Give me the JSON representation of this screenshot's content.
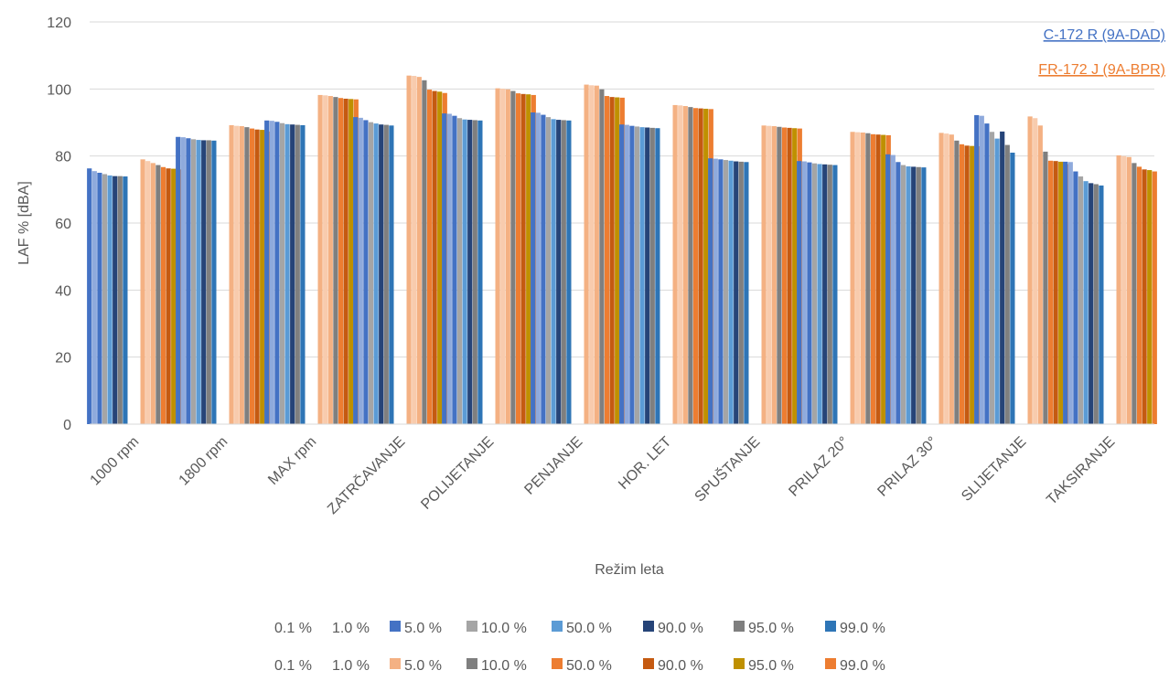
{
  "chart_data": {
    "type": "bar",
    "title": "",
    "xlabel": "Režim leta",
    "ylabel": "LAF % [dBA]",
    "ylim": [
      0,
      120
    ],
    "yticks": [
      0,
      20,
      40,
      60,
      80,
      100,
      120
    ],
    "grid": true,
    "categories": [
      "1000 rpm",
      "1800 rpm",
      "MAX rpm",
      "ZATRČAVANJE",
      "POLIJETANJE",
      "PENJANJE",
      "HOR. LET",
      "SPUŠTANJE",
      "PRILAZ 20°",
      "PRILAZ 30°",
      "SLIJETANJE",
      "TAKSIRANJE"
    ],
    "groups": [
      {
        "name": "C-172 R (9A-DAD)",
        "color": "#4472c4",
        "series": [
          {
            "name": "0.1 %",
            "color": "#4472c4",
            "values": [
              76.3,
              85.7,
              90.6,
              91.6,
              92.7,
              93.0,
              89.4,
              79.3,
              78.5,
              80.5,
              92.2,
              78.3
            ]
          },
          {
            "name": "1.0 %",
            "color": "#8faadc",
            "values": [
              75.5,
              85.6,
              90.5,
              91.4,
              92.6,
              92.9,
              89.3,
              79.2,
              78.4,
              80.3,
              92.0,
              78.2
            ]
          },
          {
            "name": "5.0 %",
            "color": "#4472c4",
            "values": [
              75.0,
              85.3,
              90.2,
              90.7,
              92.0,
              92.3,
              89.0,
              79.0,
              78.1,
              78.2,
              89.7,
              75.4
            ]
          },
          {
            "name": "10.0 %",
            "color": "#a5a5a5",
            "values": [
              74.6,
              85.0,
              89.8,
              90.1,
              91.3,
              91.6,
              88.8,
              78.8,
              77.8,
              77.3,
              87.2,
              73.9
            ]
          },
          {
            "name": "50.0 %",
            "color": "#5b9bd5",
            "values": [
              74.2,
              84.8,
              89.5,
              89.7,
              90.9,
              91.0,
              88.6,
              78.6,
              77.6,
              76.9,
              85.2,
              72.5
            ]
          },
          {
            "name": "90.0 %",
            "color": "#264478",
            "values": [
              74.0,
              84.7,
              89.4,
              89.4,
              90.8,
              90.8,
              88.5,
              78.4,
              77.5,
              76.8,
              87.3,
              71.9
            ]
          },
          {
            "name": "95.0 %",
            "color": "#7f7f7f",
            "values": [
              74.0,
              84.7,
              89.3,
              89.3,
              90.7,
              90.7,
              88.4,
              78.3,
              77.4,
              76.7,
              83.3,
              71.6
            ]
          },
          {
            "name": "99.0 %",
            "color": "#2e75b6",
            "values": [
              73.9,
              84.6,
              89.2,
              89.1,
              90.6,
              90.6,
              88.3,
              78.2,
              77.3,
              76.6,
              81.0,
              71.2
            ]
          }
        ]
      },
      {
        "name": "FR-172 J (9A-BPR)",
        "color": "#ed7d31",
        "series": [
          {
            "name": "0.1 %",
            "color": "#f4b183",
            "values": [
              79.0,
              89.2,
              98.2,
              104.0,
              100.2,
              101.3,
              95.2,
              89.1,
              87.2,
              86.9,
              91.8,
              80.2
            ]
          },
          {
            "name": "1.0 %",
            "color": "#f8cbad",
            "values": [
              78.5,
              89.0,
              98.1,
              103.9,
              100.1,
              101.1,
              95.1,
              89.0,
              87.1,
              86.7,
              91.3,
              80.0
            ]
          },
          {
            "name": "5.0 %",
            "color": "#f4b183",
            "values": [
              77.9,
              88.9,
              97.9,
              103.6,
              99.9,
              101.0,
              94.9,
              88.9,
              87.0,
              86.4,
              89.1,
              79.7
            ]
          },
          {
            "name": "10.0 %",
            "color": "#7f7f7f",
            "values": [
              77.3,
              88.6,
              97.6,
              102.6,
              99.4,
              99.9,
              94.6,
              88.7,
              86.8,
              84.6,
              81.3,
              77.9
            ]
          },
          {
            "name": "50.0 %",
            "color": "#ed7d31",
            "values": [
              76.7,
              88.2,
              97.3,
              99.8,
              98.7,
              97.9,
              94.3,
              88.5,
              86.5,
              83.5,
              78.6,
              76.8
            ]
          },
          {
            "name": "90.0 %",
            "color": "#c55a11",
            "values": [
              76.3,
              87.9,
              97.1,
              99.4,
              98.5,
              97.6,
              94.2,
              88.4,
              86.4,
              83.1,
              78.5,
              76.0
            ]
          },
          {
            "name": "95.0 %",
            "color": "#bf9000",
            "values": [
              76.2,
              87.8,
              97.0,
              99.2,
              98.4,
              97.5,
              94.1,
              88.3,
              86.3,
              83.0,
              78.3,
              75.8
            ]
          },
          {
            "name": "99.0 %",
            "color": "#ed7d31",
            "values": [
              76.0,
              87.3,
              96.9,
              98.8,
              98.2,
              97.4,
              94.0,
              88.2,
              86.2,
              82.9,
              77.6,
              75.4
            ]
          }
        ]
      }
    ],
    "legend_position": "bottom"
  }
}
